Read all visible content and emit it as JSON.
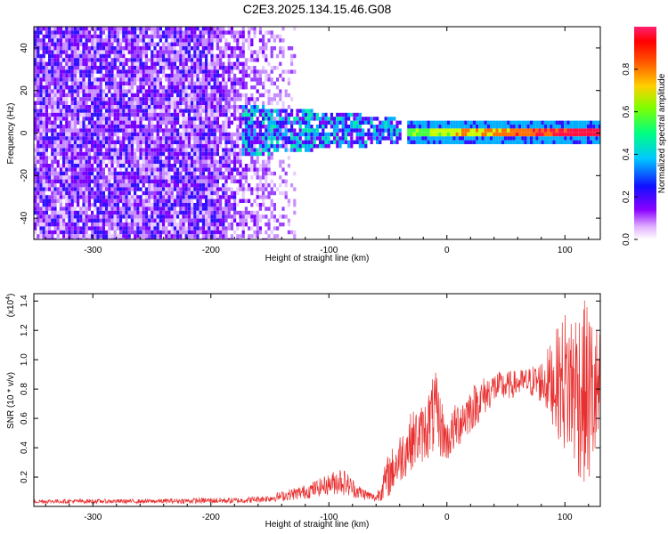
{
  "title": "C2E3.2025.134.15.46.G08",
  "colors": {
    "snr_line": "#e83030",
    "axis": "#000000",
    "spectrogram_bg": "#ffffff",
    "colorbar": [
      "#ff00ff",
      "#8a00ff",
      "#0000ff",
      "#00c8ff",
      "#00ff80",
      "#80ff00",
      "#ffd000",
      "#ff6000",
      "#ff0000",
      "#ff2060"
    ]
  },
  "chart_data": [
    {
      "type": "heatmap",
      "name": "spectrogram",
      "xlabel": "Height of straight line (km)",
      "ylabel": "Frequency (Hz)",
      "xlim": [
        -350,
        130
      ],
      "ylim": [
        -50,
        50
      ],
      "x_ticks": [
        -300,
        -200,
        -100,
        0,
        100
      ],
      "y_ticks": [
        -40,
        -20,
        0,
        20,
        40
      ],
      "colorbar": {
        "label": "Normalized spectral amplitude",
        "range": [
          0.0,
          1.0
        ],
        "ticks": [
          0.0,
          0.2,
          0.4,
          0.6,
          0.8
        ]
      },
      "features": {
        "noise_region_x": [
          -350,
          -130
        ],
        "signal_spread_region_x": [
          -175,
          -40
        ],
        "tone_region_x": [
          -40,
          130
        ],
        "tone_frequency_hz": 1
      }
    },
    {
      "type": "line",
      "name": "snr",
      "xlabel": "Height of straight line (km)",
      "ylabel": "SNR (10 * v/v)",
      "ylabel_multiplier": "(x10",
      "ylabel_multiplier_exp": "4",
      "ylabel_multiplier_close": ")",
      "xlim": [
        -350,
        130
      ],
      "ylim": [
        0,
        1.45
      ],
      "x_ticks": [
        -300,
        -200,
        -100,
        0,
        100
      ],
      "y_ticks": [
        0.2,
        0.4,
        0.6,
        0.8,
        1.0,
        1.2,
        1.4
      ],
      "envelope": {
        "x": [
          -350,
          -300,
          -250,
          -200,
          -175,
          -150,
          -120,
          -100,
          -90,
          -75,
          -60,
          -50,
          -40,
          -30,
          -20,
          -10,
          0,
          10,
          20,
          30,
          40,
          50,
          60,
          70,
          80,
          90,
          100,
          110,
          120,
          130
        ],
        "low": [
          0.02,
          0.02,
          0.02,
          0.02,
          0.02,
          0.03,
          0.05,
          0.08,
          0.08,
          0.05,
          0.03,
          0.05,
          0.15,
          0.25,
          0.3,
          0.35,
          0.3,
          0.4,
          0.5,
          0.6,
          0.7,
          0.72,
          0.75,
          0.75,
          0.7,
          0.55,
          0.35,
          0.2,
          0.1,
          0.3
        ],
        "high": [
          0.05,
          0.05,
          0.05,
          0.06,
          0.06,
          0.08,
          0.15,
          0.22,
          0.28,
          0.15,
          0.08,
          0.35,
          0.5,
          0.65,
          0.7,
          0.93,
          0.58,
          0.75,
          0.82,
          0.88,
          0.92,
          0.92,
          0.93,
          0.95,
          1.0,
          1.15,
          1.35,
          1.42,
          1.4,
          1.2
        ]
      }
    }
  ]
}
